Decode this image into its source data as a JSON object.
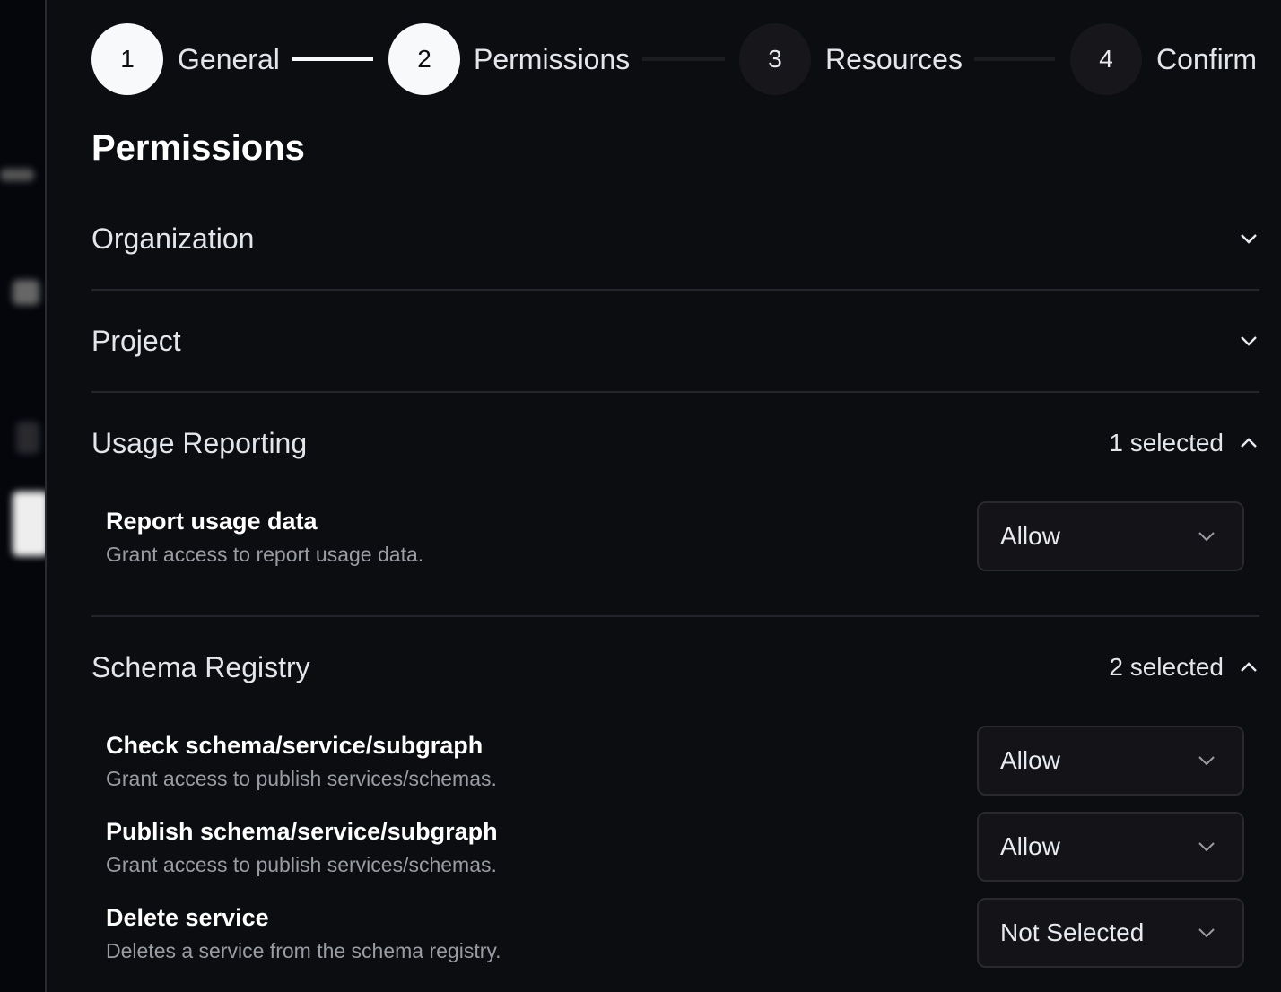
{
  "stepper": [
    {
      "number": "1",
      "label": "General",
      "state": "complete"
    },
    {
      "number": "2",
      "label": "Permissions",
      "state": "active"
    },
    {
      "number": "3",
      "label": "Resources",
      "state": "upcoming"
    },
    {
      "number": "4",
      "label": "Confirm",
      "state": "upcoming"
    }
  ],
  "page_title": "Permissions",
  "sections": [
    {
      "title": "Organization",
      "expanded": false
    },
    {
      "title": "Project",
      "expanded": false
    },
    {
      "title": "Usage Reporting",
      "expanded": true,
      "selected_count": "1 selected",
      "items": [
        {
          "title": "Report usage data",
          "description": "Grant access to report usage data.",
          "value": "Allow"
        }
      ]
    },
    {
      "title": "Schema Registry",
      "expanded": true,
      "selected_count": "2 selected",
      "items": [
        {
          "title": "Check schema/service/subgraph",
          "description": "Grant access to publish services/schemas.",
          "value": "Allow"
        },
        {
          "title": "Publish schema/service/subgraph",
          "description": "Grant access to publish services/schemas.",
          "value": "Allow"
        },
        {
          "title": "Delete service",
          "description": "Deletes a service from the schema registry.",
          "value": "Not Selected"
        }
      ]
    }
  ],
  "colors": {
    "background": "#0c0d11",
    "step_active": "#f8f9fb",
    "step_inactive": "#17171b"
  }
}
